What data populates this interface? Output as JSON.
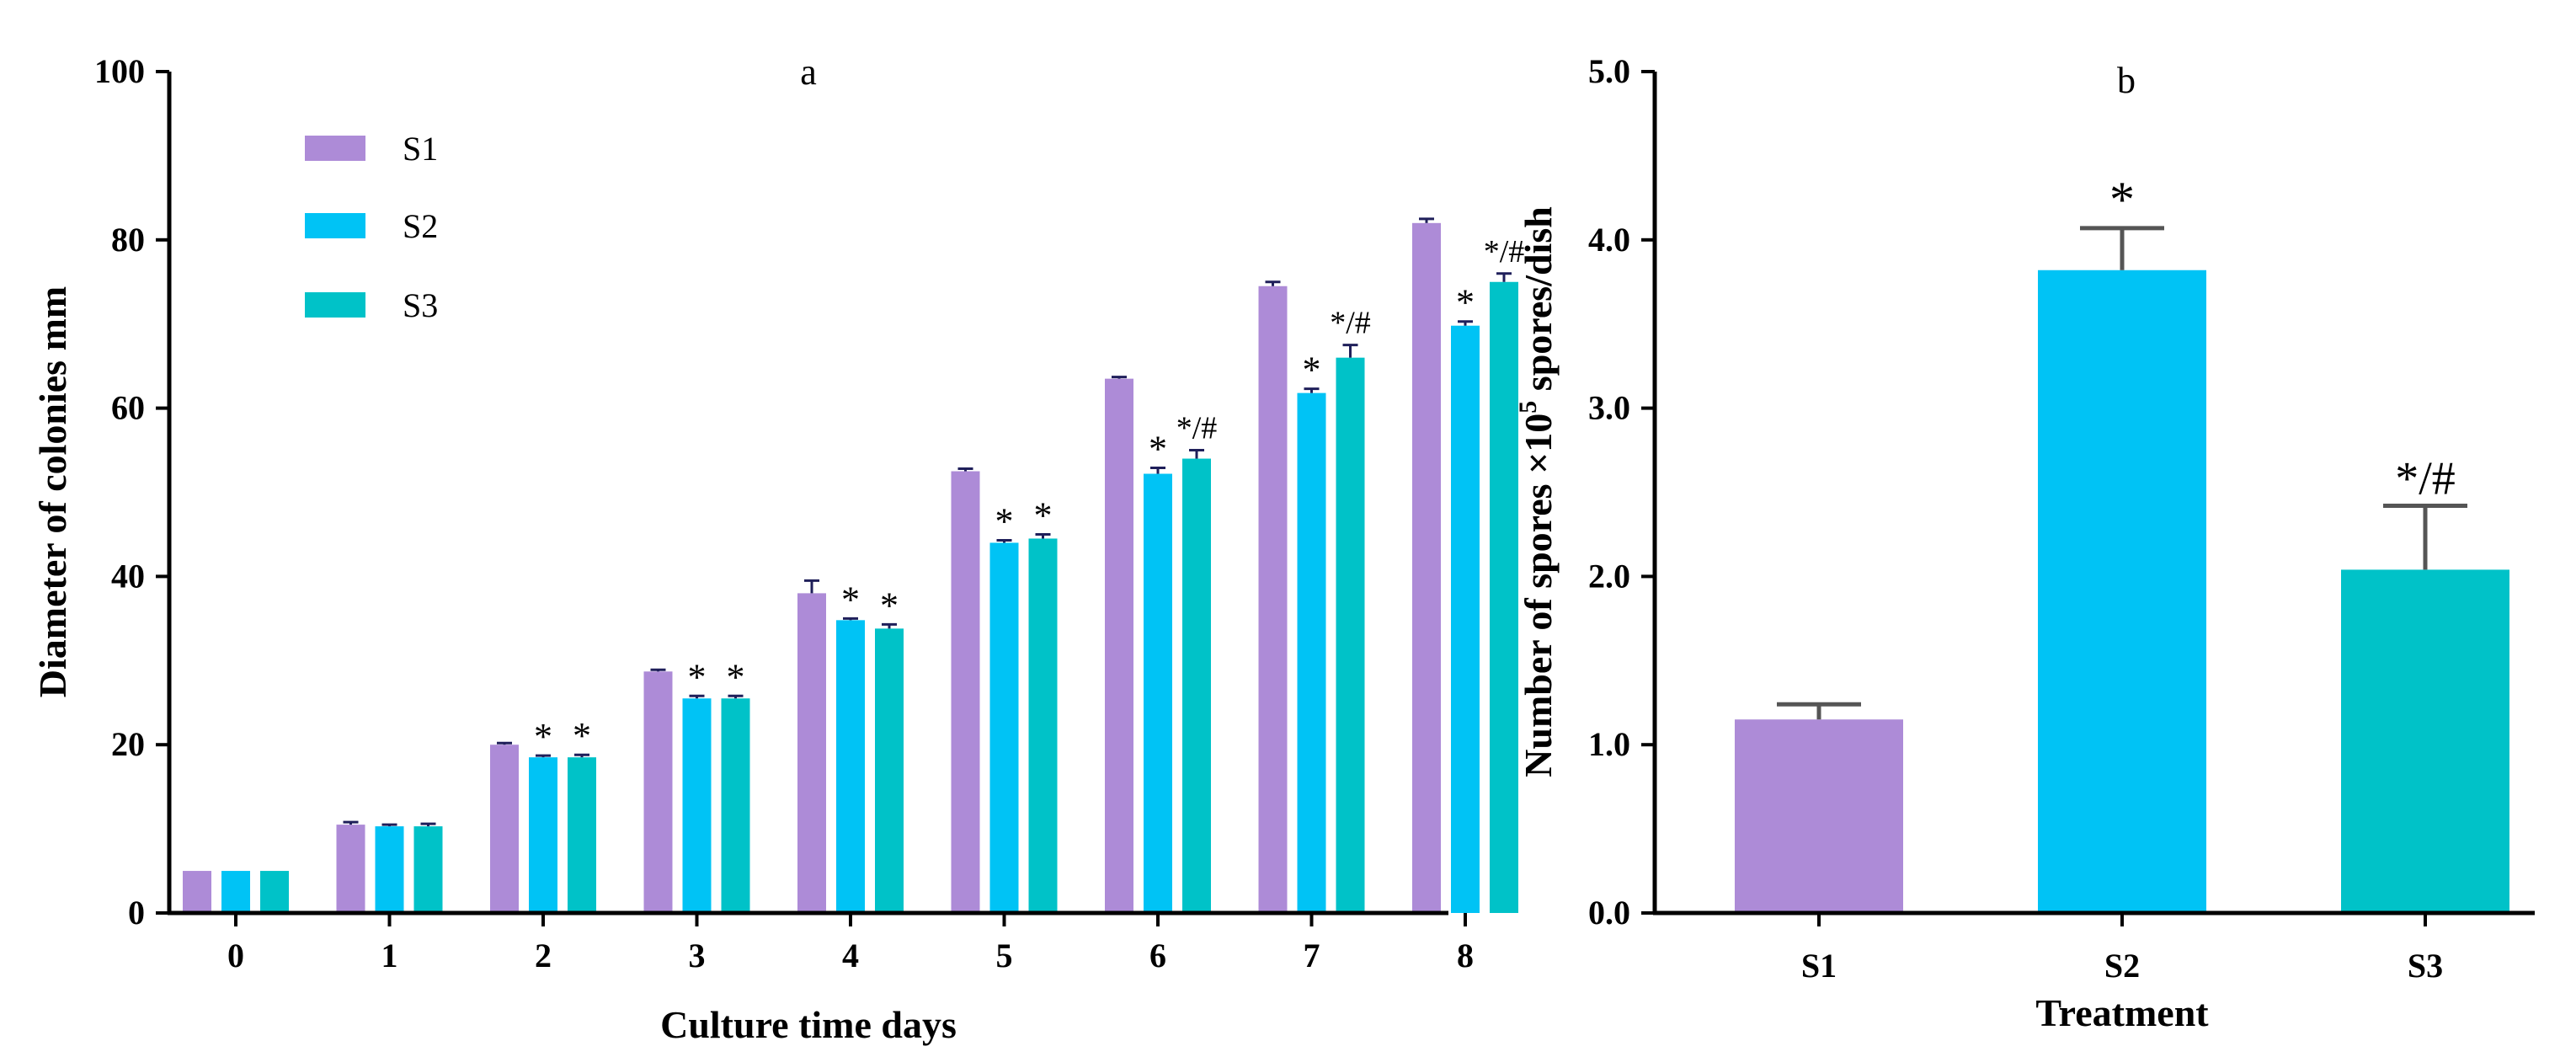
{
  "colors": {
    "S1": "#ad8bd7",
    "S2": "#00c3f5",
    "S3": "#00c2c8",
    "axis": "#000000",
    "error": "#1f1f5a"
  },
  "chart_data": [
    {
      "type": "bar",
      "title": "a",
      "xlabel": "Culture time  days",
      "ylabel": "Diameter of colonies  mm",
      "ylim": [
        0,
        100
      ],
      "yticks": [
        0,
        20,
        40,
        60,
        80,
        100
      ],
      "ytick_labels": [
        "0",
        "20",
        "40",
        "60",
        "80",
        "100"
      ],
      "categories": [
        "0",
        "1",
        "2",
        "3",
        "4",
        "5",
        "6",
        "7",
        "8"
      ],
      "legend": {
        "position": "top-left",
        "entries": [
          "S1",
          "S2",
          "S3"
        ]
      },
      "series": [
        {
          "name": "S1",
          "values": [
            5,
            10.5,
            20,
            28.7,
            38,
            52.5,
            63.5,
            74.5,
            82
          ],
          "errors": [
            0,
            0.3,
            0.2,
            0.2,
            1.5,
            0.3,
            0.2,
            0.5,
            0.5
          ],
          "annotations": [
            "",
            "",
            "",
            "",
            "",
            "",
            "",
            "",
            ""
          ]
        },
        {
          "name": "S2",
          "values": [
            5,
            10.3,
            18.5,
            25.5,
            34.8,
            44,
            52.2,
            61.8,
            69.8
          ],
          "errors": [
            0,
            0.2,
            0.2,
            0.3,
            0.2,
            0.3,
            0.7,
            0.5,
            0.5
          ],
          "annotations": [
            "",
            "",
            "*",
            "*",
            "*",
            "*",
            "*",
            "*",
            "*"
          ]
        },
        {
          "name": "S3",
          "values": [
            5,
            10.3,
            18.5,
            25.5,
            33.8,
            44.5,
            54,
            66,
            75
          ],
          "errors": [
            0,
            0.3,
            0.3,
            0.3,
            0.5,
            0.5,
            1.0,
            1.5,
            1.0
          ],
          "annotations": [
            "",
            "",
            "*",
            "*",
            "*",
            "*",
            "*/#",
            "*/#",
            "*/#"
          ]
        }
      ]
    },
    {
      "type": "bar",
      "title": "b",
      "xlabel": "Treatment",
      "ylabel_main": "Number of spores  ×10",
      "ylabel_exp": "5",
      "ylabel_unit": " spores/dish",
      "ylim": [
        0,
        5
      ],
      "yticks": [
        0,
        1,
        2,
        3,
        4,
        5
      ],
      "ytick_labels": [
        "0.0",
        "1.0",
        "2.0",
        "3.0",
        "4.0",
        "5.0"
      ],
      "categories": [
        "S1",
        "S2",
        "S3"
      ],
      "values": [
        1.15,
        3.82,
        2.04
      ],
      "errors": [
        0.09,
        0.25,
        0.38
      ],
      "annotations": [
        "",
        "*",
        "*/#"
      ]
    }
  ]
}
